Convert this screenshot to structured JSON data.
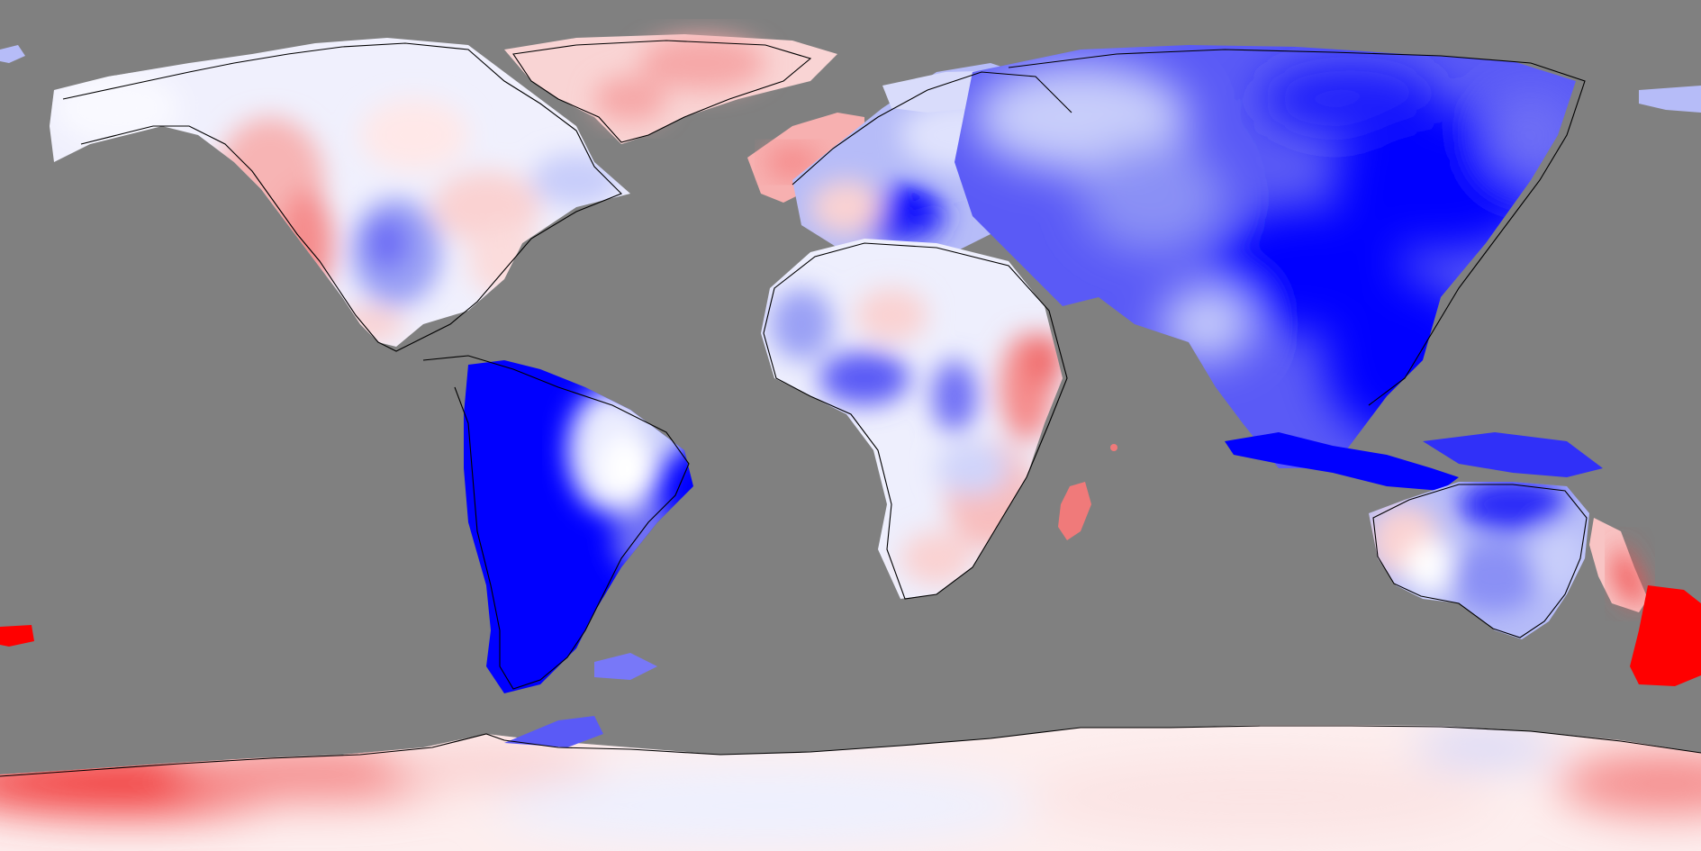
{
  "map": {
    "projection": "equirectangular",
    "ocean_color": "#808080",
    "coastline_color": "#000000",
    "palette": {
      "strong_blue": "#0000ff",
      "mid_blue": "#6e6ef5",
      "light_blue": "#c8cdfa",
      "near_white": "#f4f4fe",
      "light_red": "#fad2d2",
      "mid_red": "#f58c8c",
      "strong_red": "#ff0000"
    },
    "regions": [
      {
        "name": "north-america",
        "tone": "mixed"
      },
      {
        "name": "greenland",
        "tone": "light-red"
      },
      {
        "name": "south-america",
        "tone": "strong-blue"
      },
      {
        "name": "europe",
        "tone": "blue"
      },
      {
        "name": "asia",
        "tone": "strong-blue"
      },
      {
        "name": "africa",
        "tone": "mixed"
      },
      {
        "name": "madagascar",
        "tone": "red"
      },
      {
        "name": "australia",
        "tone": "mixed"
      },
      {
        "name": "new-zealand",
        "tone": "strong-red"
      },
      {
        "name": "antarctica",
        "tone": "light-red-to-white"
      }
    ]
  }
}
